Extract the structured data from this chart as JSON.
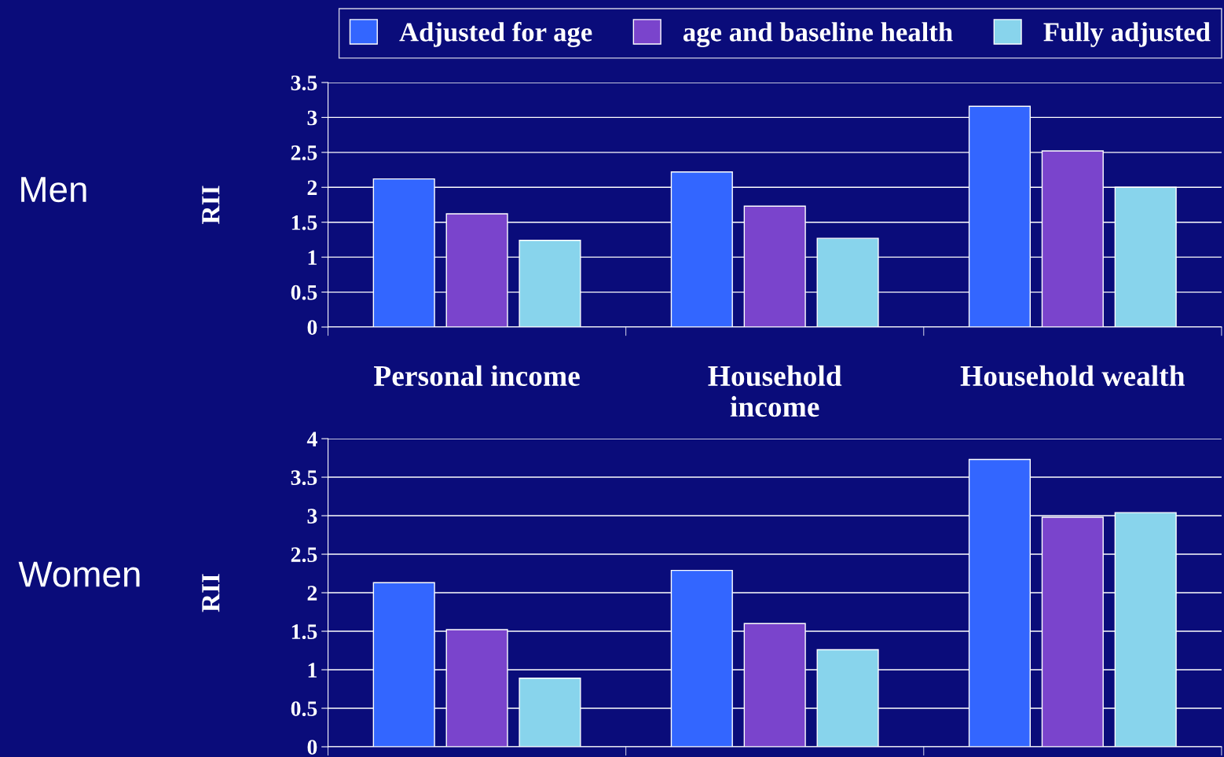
{
  "chart_data": [
    {
      "type": "bar",
      "categories": [
        "Personal income",
        "Household\nincome",
        "Household wealth"
      ],
      "ylabel": "RII",
      "ylim": [
        0,
        3.5
      ],
      "yticks": [
        0,
        0.5,
        1,
        1.5,
        2,
        2.5,
        3,
        3.5
      ],
      "grid": "y",
      "legend": "top",
      "annotations": [
        "Men"
      ],
      "series": [
        {
          "name": "Adjusted for age",
          "color": "#3366ff",
          "values": [
            2.12,
            2.22,
            3.16
          ]
        },
        {
          "name": "age and baseline health",
          "color": "#7a44cc",
          "values": [
            1.62,
            1.73,
            2.52
          ]
        },
        {
          "name": "Fully adjusted",
          "color": "#88d4ec",
          "values": [
            1.24,
            1.27,
            2.0
          ]
        }
      ]
    },
    {
      "type": "bar",
      "categories": [
        null,
        null,
        null
      ],
      "ylabel": "RII",
      "ylim": [
        0,
        4
      ],
      "yticks": [
        0,
        0.5,
        1,
        1.5,
        2,
        2.5,
        3,
        3.5,
        4
      ],
      "grid": "y",
      "tick_labels": "y",
      "annotations": [
        "Women"
      ],
      "series": [
        {
          "color": "#3366ff",
          "values": [
            2.13,
            2.29,
            3.73
          ]
        },
        {
          "color": "#7a44cc",
          "values": [
            1.52,
            1.6,
            2.98
          ]
        },
        {
          "color": "#88d4ec",
          "values": [
            0.89,
            1.26,
            3.04
          ]
        }
      ]
    }
  ]
}
